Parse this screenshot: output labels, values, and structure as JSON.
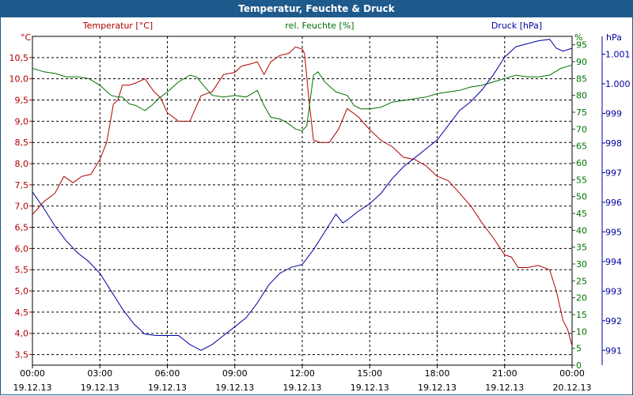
{
  "header": {
    "title": "Temperatur, Feuchte & Druck"
  },
  "colors": {
    "titlebar": "#1f5a8c",
    "temperature": "#b00000",
    "humidity": "#007000",
    "pressure": "#0000a0",
    "grid": "#000000"
  },
  "chart_data": {
    "type": "line",
    "title": "Temperatur, Feuchte & Druck",
    "grid": true,
    "x_ticks": [
      {
        "time": "00:00",
        "date": "19.12.13"
      },
      {
        "time": "03:00",
        "date": "19.12.13"
      },
      {
        "time": "06:00",
        "date": "19.12.13"
      },
      {
        "time": "09:00",
        "date": "19.12.13"
      },
      {
        "time": "12:00",
        "date": "19.12.13"
      },
      {
        "time": "15:00",
        "date": "19.12.13"
      },
      {
        "time": "18:00",
        "date": "19.12.13"
      },
      {
        "time": "21:00",
        "date": "19.12.13"
      },
      {
        "time": "00:00",
        "date": "20.12.13"
      }
    ],
    "axes": {
      "temperature": {
        "label": "Temperatur [°C]",
        "unit": "°C",
        "range": [
          3.25,
          11.0
        ],
        "ticks": [
          "3,5",
          "4,0",
          "4,5",
          "5,0",
          "5,5",
          "6,0",
          "6,5",
          "7,0",
          "7,5",
          "8,0",
          "8,5",
          "9,0",
          "9,5",
          "10,0",
          "10,5"
        ]
      },
      "humidity": {
        "label": "rel. Feuchte [%]",
        "unit": "%",
        "range": [
          0,
          97.5
        ],
        "ticks": [
          "0",
          "5",
          "10",
          "15",
          "20",
          "25",
          "30",
          "35",
          "40",
          "45",
          "50",
          "55",
          "60",
          "65",
          "70",
          "75",
          "80",
          "85",
          "90",
          "95"
        ]
      },
      "pressure": {
        "label": "Druck [hPa]",
        "unit": "hPa",
        "range": [
          990.5,
          1001.6
        ],
        "ticks": [
          "991",
          "992",
          "993",
          "994",
          "995",
          "996",
          "997",
          "998",
          "999",
          "1.000",
          "1.001"
        ]
      }
    },
    "series": [
      {
        "name": "Temperatur [°C]",
        "axis": "temperature",
        "points": [
          [
            0,
            6.8
          ],
          [
            0.5,
            7.1
          ],
          [
            1,
            7.3
          ],
          [
            1.4,
            7.7
          ],
          [
            1.8,
            7.55
          ],
          [
            2.2,
            7.7
          ],
          [
            2.6,
            7.75
          ],
          [
            3,
            8.1
          ],
          [
            3.3,
            8.5
          ],
          [
            3.6,
            9.4
          ],
          [
            3.8,
            9.5
          ],
          [
            4.0,
            9.85
          ],
          [
            4.3,
            9.85
          ],
          [
            4.6,
            9.9
          ],
          [
            5.0,
            10.0
          ],
          [
            5.4,
            9.7
          ],
          [
            5.7,
            9.55
          ],
          [
            6.0,
            9.2
          ],
          [
            6.5,
            9.0
          ],
          [
            7.0,
            9.0
          ],
          [
            7.5,
            9.6
          ],
          [
            8.0,
            9.7
          ],
          [
            8.5,
            10.1
          ],
          [
            9.0,
            10.15
          ],
          [
            9.3,
            10.3
          ],
          [
            9.7,
            10.35
          ],
          [
            10.0,
            10.4
          ],
          [
            10.3,
            10.1
          ],
          [
            10.6,
            10.4
          ],
          [
            11.0,
            10.55
          ],
          [
            11.4,
            10.6
          ],
          [
            11.7,
            10.75
          ],
          [
            12.0,
            10.7
          ],
          [
            12.1,
            10.6
          ],
          [
            12.3,
            9.5
          ],
          [
            12.5,
            8.55
          ],
          [
            12.8,
            8.5
          ],
          [
            13.2,
            8.5
          ],
          [
            13.6,
            8.8
          ],
          [
            14.0,
            9.3
          ],
          [
            14.5,
            9.1
          ],
          [
            15.0,
            8.8
          ],
          [
            15.5,
            8.55
          ],
          [
            16.0,
            8.4
          ],
          [
            16.5,
            8.15
          ],
          [
            17.0,
            8.1
          ],
          [
            17.5,
            7.95
          ],
          [
            18.0,
            7.7
          ],
          [
            18.5,
            7.6
          ],
          [
            19.0,
            7.3
          ],
          [
            19.5,
            7.0
          ],
          [
            20.0,
            6.6
          ],
          [
            20.5,
            6.25
          ],
          [
            21.0,
            5.85
          ],
          [
            21.3,
            5.8
          ],
          [
            21.6,
            5.55
          ],
          [
            22.0,
            5.55
          ],
          [
            22.5,
            5.6
          ],
          [
            23.0,
            5.5
          ],
          [
            23.3,
            5.0
          ],
          [
            23.6,
            4.3
          ],
          [
            23.8,
            4.1
          ],
          [
            24.0,
            3.7
          ]
        ]
      },
      {
        "name": "rel. Feuchte [%]",
        "axis": "humidity",
        "points": [
          [
            0,
            88
          ],
          [
            0.5,
            87
          ],
          [
            1,
            86.5
          ],
          [
            1.5,
            85.5
          ],
          [
            2,
            85.5
          ],
          [
            2.5,
            85
          ],
          [
            3,
            83
          ],
          [
            3.5,
            80
          ],
          [
            3.8,
            79.5
          ],
          [
            4.0,
            79.5
          ],
          [
            4.3,
            77.5
          ],
          [
            4.6,
            77
          ],
          [
            5.0,
            75.5
          ],
          [
            5.3,
            77
          ],
          [
            5.6,
            79
          ],
          [
            6.0,
            81
          ],
          [
            6.5,
            84
          ],
          [
            7.0,
            86
          ],
          [
            7.3,
            85.5
          ],
          [
            7.6,
            83
          ],
          [
            8.0,
            80
          ],
          [
            8.5,
            79.5
          ],
          [
            9.0,
            80
          ],
          [
            9.5,
            79.5
          ],
          [
            10.0,
            81.5
          ],
          [
            10.3,
            77
          ],
          [
            10.6,
            73.5
          ],
          [
            11.0,
            73
          ],
          [
            11.3,
            72
          ],
          [
            11.7,
            70
          ],
          [
            12.0,
            69.5
          ],
          [
            12.2,
            71
          ],
          [
            12.5,
            86
          ],
          [
            12.7,
            87
          ],
          [
            13.0,
            84
          ],
          [
            13.5,
            81
          ],
          [
            14.0,
            80
          ],
          [
            14.3,
            77
          ],
          [
            14.6,
            76
          ],
          [
            15.0,
            76
          ],
          [
            15.5,
            76.5
          ],
          [
            16.0,
            78
          ],
          [
            16.5,
            78.5
          ],
          [
            17.0,
            79
          ],
          [
            17.5,
            79.5
          ],
          [
            18.0,
            80.5
          ],
          [
            18.5,
            81
          ],
          [
            19.0,
            81.5
          ],
          [
            19.5,
            82.5
          ],
          [
            20.0,
            83
          ],
          [
            20.5,
            84
          ],
          [
            21.0,
            85
          ],
          [
            21.5,
            86
          ],
          [
            22.0,
            85.5
          ],
          [
            22.5,
            85.5
          ],
          [
            23.0,
            86
          ],
          [
            23.5,
            88
          ],
          [
            24.0,
            89
          ]
        ]
      },
      {
        "name": "Druck [hPa]",
        "axis": "pressure",
        "points": [
          [
            0,
            996.35
          ],
          [
            0.5,
            995.8
          ],
          [
            1,
            995.2
          ],
          [
            1.5,
            994.7
          ],
          [
            2,
            994.3
          ],
          [
            2.5,
            994.0
          ],
          [
            3,
            993.6
          ],
          [
            3.5,
            993.0
          ],
          [
            4.0,
            992.4
          ],
          [
            4.5,
            991.9
          ],
          [
            5.0,
            991.55
          ],
          [
            5.5,
            991.5
          ],
          [
            6.0,
            991.5
          ],
          [
            6.5,
            991.5
          ],
          [
            7.0,
            991.2
          ],
          [
            7.5,
            991.0
          ],
          [
            8.0,
            991.2
          ],
          [
            8.5,
            991.5
          ],
          [
            9.0,
            991.8
          ],
          [
            9.5,
            992.1
          ],
          [
            10.0,
            992.6
          ],
          [
            10.5,
            993.2
          ],
          [
            11.0,
            993.6
          ],
          [
            11.5,
            993.8
          ],
          [
            12.0,
            993.9
          ],
          [
            12.5,
            994.4
          ],
          [
            13.0,
            995.0
          ],
          [
            13.5,
            995.6
          ],
          [
            13.8,
            995.3
          ],
          [
            14.0,
            995.4
          ],
          [
            14.5,
            995.7
          ],
          [
            15.0,
            995.95
          ],
          [
            15.5,
            996.3
          ],
          [
            16.0,
            996.8
          ],
          [
            16.5,
            997.2
          ],
          [
            17.0,
            997.5
          ],
          [
            17.5,
            997.8
          ],
          [
            18.0,
            998.1
          ],
          [
            18.5,
            998.6
          ],
          [
            19.0,
            999.1
          ],
          [
            19.5,
            999.4
          ],
          [
            20.0,
            999.8
          ],
          [
            20.5,
            1000.3
          ],
          [
            21.0,
            1000.9
          ],
          [
            21.5,
            1001.25
          ],
          [
            22.0,
            1001.35
          ],
          [
            22.5,
            1001.45
          ],
          [
            23.0,
            1001.5
          ],
          [
            23.3,
            1001.2
          ],
          [
            23.6,
            1001.1
          ],
          [
            24.0,
            1001.2
          ]
        ]
      }
    ]
  }
}
